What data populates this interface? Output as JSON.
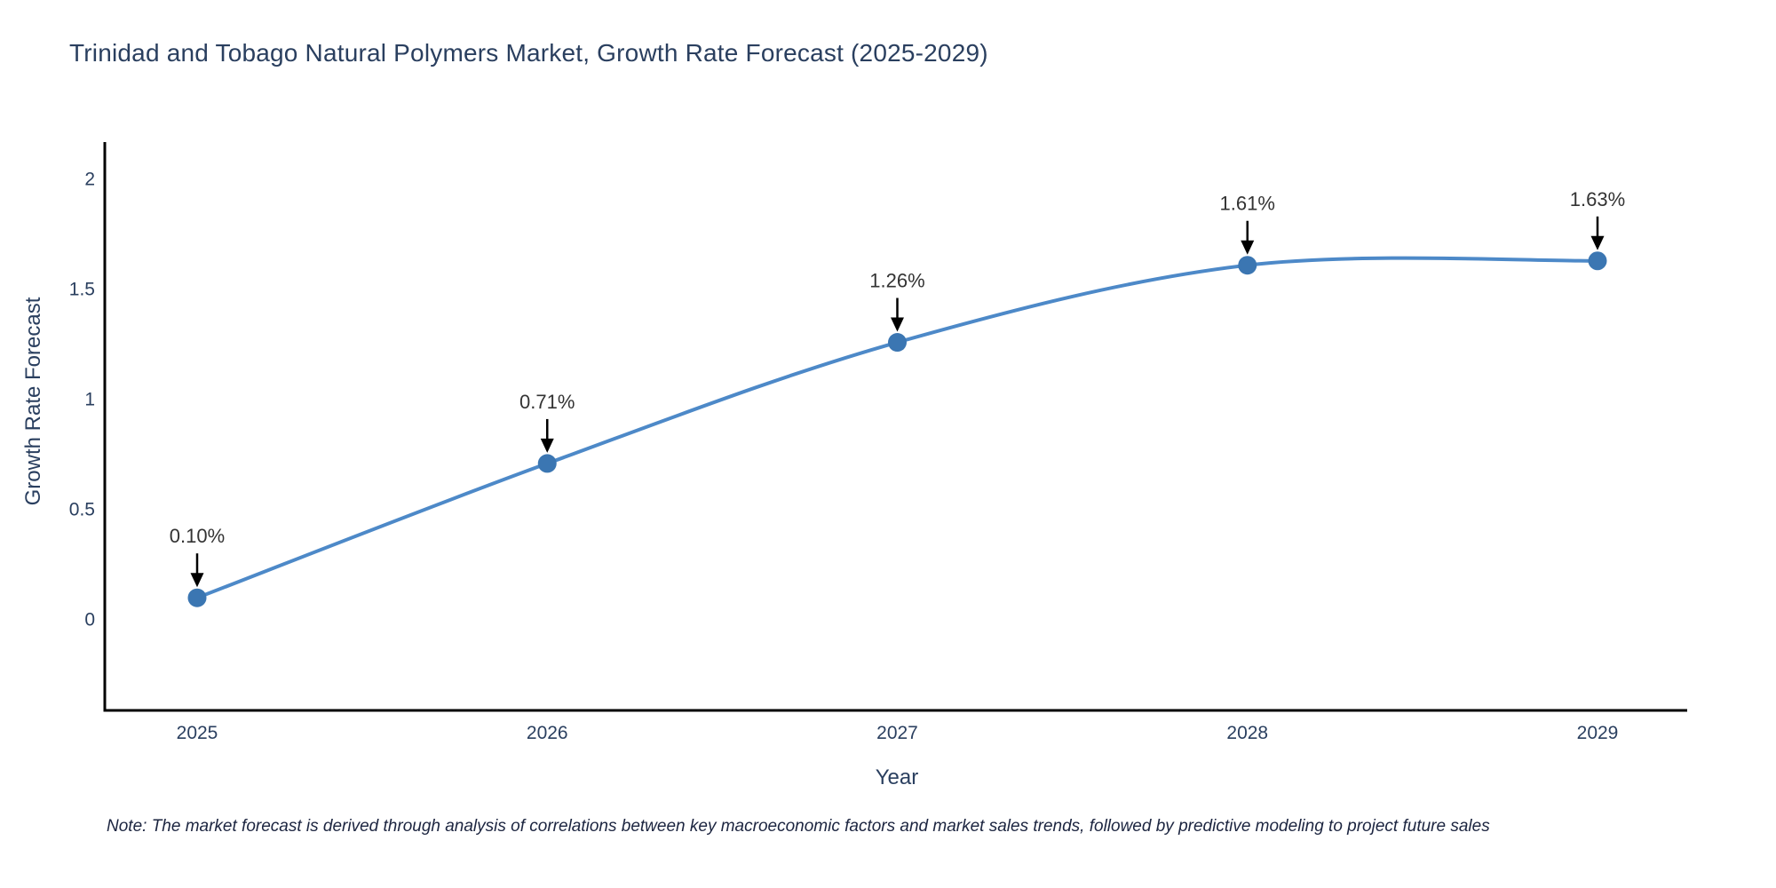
{
  "chart_data": {
    "type": "line",
    "title": "Trinidad and Tobago Natural Polymers Market, Growth Rate Forecast (2025-2029)",
    "xlabel": "Year",
    "ylabel": "Growth Rate Forecast",
    "x": [
      2025,
      2026,
      2027,
      2028,
      2029
    ],
    "values": [
      0.1,
      0.71,
      1.26,
      1.61,
      1.63
    ],
    "point_labels": [
      "0.10%",
      "0.71%",
      "1.26%",
      "1.61%",
      "1.63%"
    ],
    "yticks": [
      0,
      0.5,
      1,
      1.5,
      2
    ],
    "ytick_labels": [
      "0",
      "0.5",
      "1",
      "1.5",
      "2"
    ],
    "xtick_labels": [
      "2025",
      "2026",
      "2027",
      "2028",
      "2029"
    ],
    "xlim": [
      2024.74,
      2029.26
    ],
    "ylim": [
      -0.41,
      2.17
    ],
    "grid": false,
    "legend": "none",
    "line_color": "#4d89c8",
    "marker_color": "#3b76b2",
    "axis_color": "#000000",
    "text_color": "#2a3f5f",
    "annotation_color": "#333333",
    "note": "Note: The market forecast is derived through analysis of correlations between key macroeconomic factors and market sales trends, followed by predictive modeling to project future sales"
  }
}
